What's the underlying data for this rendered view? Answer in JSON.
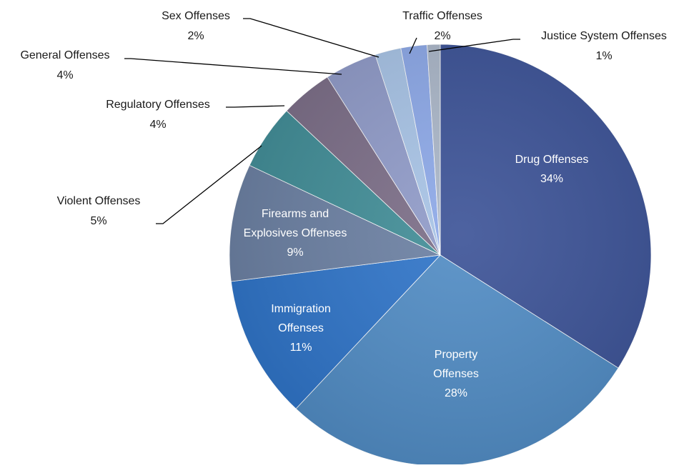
{
  "chart_data": {
    "type": "pie",
    "title": "",
    "slices": [
      {
        "label": "Drug Offenses",
        "value": 34,
        "pct_label": "34%",
        "color": "#3a5196"
      },
      {
        "label": "Property Offenses",
        "value": 28,
        "pct_label": "28%",
        "color": "#4f8bc4"
      },
      {
        "label": "Immigration Offenses",
        "value": 11,
        "pct_label": "11%",
        "color": "#2d73c8"
      },
      {
        "label": "Firearms and Explosives Offenses",
        "value": 9,
        "pct_label": "9%",
        "color": "#6a7fa2"
      },
      {
        "label": "Violent Offenses",
        "value": 5,
        "pct_label": "5%",
        "color": "#3f8c96"
      },
      {
        "label": "Regulatory Offenses",
        "value": 4,
        "pct_label": "4%",
        "color": "#7a6c86"
      },
      {
        "label": "General Offenses",
        "value": 4,
        "pct_label": "4%",
        "color": "#8f9ac8"
      },
      {
        "label": "Sex Offenses",
        "value": 2,
        "pct_label": "2%",
        "color": "#a7c3e6"
      },
      {
        "label": "Traffic Offenses",
        "value": 2,
        "pct_label": "2%",
        "color": "#8ca8e8"
      },
      {
        "label": "Justice System Offenses",
        "value": 1,
        "pct_label": "1%",
        "color": "#aab6c8"
      }
    ]
  }
}
